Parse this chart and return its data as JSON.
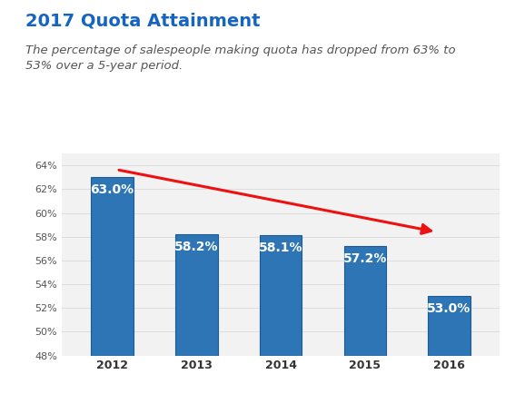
{
  "title": "2017 Quota Attainment",
  "title_color": "#1565C0",
  "subtitle": "The percentage of salespeople making quota has dropped from 63% to\n53% over a 5-year period.",
  "subtitle_color": "#555555",
  "years": [
    "2012",
    "2013",
    "2014",
    "2015",
    "2016"
  ],
  "values": [
    63.0,
    58.2,
    58.1,
    57.2,
    53.0
  ],
  "bar_color": "#2E75B6",
  "bar_edge_color": "#1a5a96",
  "label_color": "#FFFFFF",
  "label_fontsize": 10,
  "ylim": [
    48,
    65
  ],
  "yticks": [
    48,
    50,
    52,
    54,
    56,
    58,
    60,
    62,
    64
  ],
  "ytick_labels": [
    "48%",
    "50%",
    "52%",
    "54%",
    "56%",
    "58%",
    "60%",
    "62%",
    "64%"
  ],
  "grid_color": "#DDDDDD",
  "background_color": "#FFFFFF",
  "chart_bg_color": "#F2F2F2",
  "arrow_color": "#EE1111",
  "title_fontsize": 14,
  "subtitle_fontsize": 9.5,
  "bar_width": 0.5
}
